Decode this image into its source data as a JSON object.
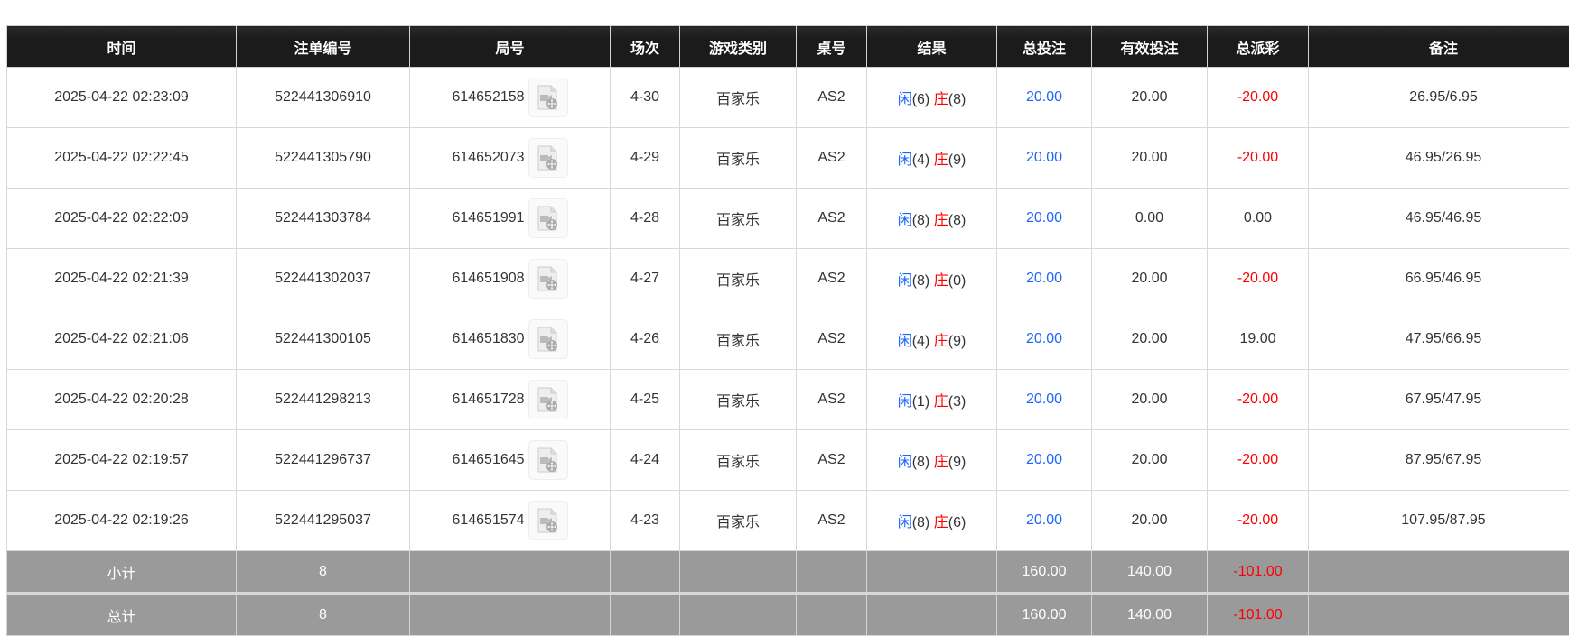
{
  "colors": {
    "header_bg": "#1b1b1b",
    "total_bg": "#9a9a9a",
    "bet_blue": "#1a66ff",
    "negative_red": "#ff0000"
  },
  "headers": [
    "时间",
    "注单编号",
    "局号",
    "场次",
    "游戏类别",
    "桌号",
    "结果",
    "总投注",
    "有效投注",
    "总派彩",
    "备注"
  ],
  "rows": [
    {
      "time": "2025-04-22 02:23:09",
      "bet_id": "522441306910",
      "round": "614652158",
      "shoe": "4-30",
      "game": "百家乐",
      "table": "AS2",
      "player_label": "闲",
      "player": "(6)",
      "banker_label": "庄",
      "banker": "(8)",
      "total_bet": "20.00",
      "valid_bet": "20.00",
      "payout": "-20.00",
      "payout_negative": true,
      "remark": "26.95/6.95"
    },
    {
      "time": "2025-04-22 02:22:45",
      "bet_id": "522441305790",
      "round": "614652073",
      "shoe": "4-29",
      "game": "百家乐",
      "table": "AS2",
      "player_label": "闲",
      "player": "(4)",
      "banker_label": "庄",
      "banker": "(9)",
      "total_bet": "20.00",
      "valid_bet": "20.00",
      "payout": "-20.00",
      "payout_negative": true,
      "remark": "46.95/26.95"
    },
    {
      "time": "2025-04-22 02:22:09",
      "bet_id": "522441303784",
      "round": "614651991",
      "shoe": "4-28",
      "game": "百家乐",
      "table": "AS2",
      "player_label": "闲",
      "player": "(8)",
      "banker_label": "庄",
      "banker": "(8)",
      "total_bet": "20.00",
      "valid_bet": "0.00",
      "payout": "0.00",
      "payout_negative": false,
      "remark": "46.95/46.95"
    },
    {
      "time": "2025-04-22 02:21:39",
      "bet_id": "522441302037",
      "round": "614651908",
      "shoe": "4-27",
      "game": "百家乐",
      "table": "AS2",
      "player_label": "闲",
      "player": "(8)",
      "banker_label": "庄",
      "banker": "(0)",
      "total_bet": "20.00",
      "valid_bet": "20.00",
      "payout": "-20.00",
      "payout_negative": true,
      "remark": "66.95/46.95"
    },
    {
      "time": "2025-04-22 02:21:06",
      "bet_id": "522441300105",
      "round": "614651830",
      "shoe": "4-26",
      "game": "百家乐",
      "table": "AS2",
      "player_label": "闲",
      "player": "(4)",
      "banker_label": "庄",
      "banker": "(9)",
      "total_bet": "20.00",
      "valid_bet": "20.00",
      "payout": "19.00",
      "payout_negative": false,
      "remark": "47.95/66.95"
    },
    {
      "time": "2025-04-22 02:20:28",
      "bet_id": "522441298213",
      "round": "614651728",
      "shoe": "4-25",
      "game": "百家乐",
      "table": "AS2",
      "player_label": "闲",
      "player": "(1)",
      "banker_label": "庄",
      "banker": "(3)",
      "total_bet": "20.00",
      "valid_bet": "20.00",
      "payout": "-20.00",
      "payout_negative": true,
      "remark": "67.95/47.95"
    },
    {
      "time": "2025-04-22 02:19:57",
      "bet_id": "522441296737",
      "round": "614651645",
      "shoe": "4-24",
      "game": "百家乐",
      "table": "AS2",
      "player_label": "闲",
      "player": "(8)",
      "banker_label": "庄",
      "banker": "(9)",
      "total_bet": "20.00",
      "valid_bet": "20.00",
      "payout": "-20.00",
      "payout_negative": true,
      "remark": "87.95/67.95"
    },
    {
      "time": "2025-04-22 02:19:26",
      "bet_id": "522441295037",
      "round": "614651574",
      "shoe": "4-23",
      "game": "百家乐",
      "table": "AS2",
      "player_label": "闲",
      "player": "(8)",
      "banker_label": "庄",
      "banker": "(6)",
      "total_bet": "20.00",
      "valid_bet": "20.00",
      "payout": "-20.00",
      "payout_negative": true,
      "remark": "107.95/87.95"
    }
  ],
  "subtotal": {
    "label": "小计",
    "count": "8",
    "total_bet": "160.00",
    "valid_bet": "140.00",
    "payout": "-101.00"
  },
  "grand_total": {
    "label": "总计",
    "count": "8",
    "total_bet": "160.00",
    "valid_bet": "140.00",
    "payout": "-101.00"
  }
}
